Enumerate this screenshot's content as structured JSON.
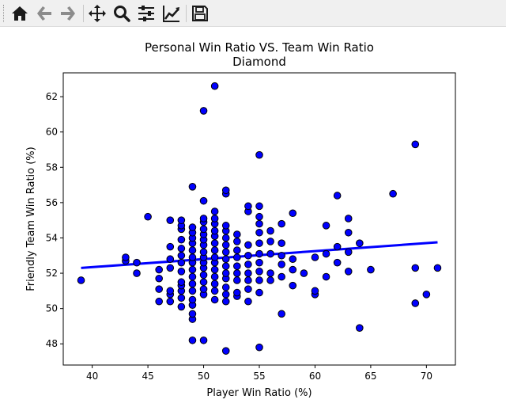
{
  "toolbar": {
    "buttons": [
      {
        "name": "home-icon",
        "tooltip": "Home"
      },
      {
        "name": "back-arrow-icon",
        "tooltip": "Back"
      },
      {
        "name": "forward-arrow-icon",
        "tooltip": "Forward"
      },
      {
        "name": "pan-move-icon",
        "tooltip": "Pan"
      },
      {
        "name": "zoom-magnifier-icon",
        "tooltip": "Zoom"
      },
      {
        "name": "configure-subplots-icon",
        "tooltip": "Subplots"
      },
      {
        "name": "edit-axis-curves-icon",
        "tooltip": "Customize"
      },
      {
        "name": "save-floppy-icon",
        "tooltip": "Save"
      }
    ]
  },
  "chart_data": {
    "type": "scatter",
    "title": "Personal Win Ratio VS. Team Win Ratio",
    "subtitle": "Diamond",
    "xlabel": "Player Win Ratio (%)",
    "ylabel": "Friendly Team Win Ratio (%)",
    "xlim": [
      37.4,
      72.6
    ],
    "ylim": [
      46.8,
      63.35
    ],
    "xticks": [
      40,
      45,
      50,
      55,
      60,
      65,
      70
    ],
    "yticks": [
      48,
      50,
      52,
      54,
      56,
      58,
      60,
      62
    ],
    "grid": false,
    "marker_color": "#0000ff",
    "marker_edge": "#000000",
    "line_color": "#0000ff",
    "trendline": {
      "x": [
        39,
        71
      ],
      "y": [
        52.3,
        53.75
      ]
    },
    "points": [
      [
        39,
        51.6
      ],
      [
        43,
        52.7
      ],
      [
        43,
        52.9
      ],
      [
        44,
        52.0
      ],
      [
        44,
        52.6
      ],
      [
        45,
        55.2
      ],
      [
        46,
        50.4
      ],
      [
        46,
        51.1
      ],
      [
        46,
        51.7
      ],
      [
        46,
        52.2
      ],
      [
        47,
        50.4
      ],
      [
        47,
        50.8
      ],
      [
        47,
        51.0
      ],
      [
        47,
        52.3
      ],
      [
        47,
        52.8
      ],
      [
        47,
        53.5
      ],
      [
        47,
        55.0
      ],
      [
        48,
        50.1
      ],
      [
        48,
        50.6
      ],
      [
        48,
        51.0
      ],
      [
        48,
        51.3
      ],
      [
        48,
        51.5
      ],
      [
        48,
        52.1
      ],
      [
        48,
        52.6
      ],
      [
        48,
        53.0
      ],
      [
        48,
        53.4
      ],
      [
        48,
        53.9
      ],
      [
        48,
        54.5
      ],
      [
        48,
        54.7
      ],
      [
        48,
        55.0
      ],
      [
        49,
        48.2
      ],
      [
        49,
        49.4
      ],
      [
        49,
        49.7
      ],
      [
        49,
        50.2
      ],
      [
        49,
        50.5
      ],
      [
        49,
        51.0
      ],
      [
        49,
        51.4
      ],
      [
        49,
        51.8
      ],
      [
        49,
        52.2
      ],
      [
        49,
        52.6
      ],
      [
        49,
        52.9
      ],
      [
        49,
        53.3
      ],
      [
        49,
        53.7
      ],
      [
        49,
        54.0
      ],
      [
        49,
        54.3
      ],
      [
        49,
        54.6
      ],
      [
        49,
        56.9
      ],
      [
        50,
        48.2
      ],
      [
        50,
        50.8
      ],
      [
        50,
        51.1
      ],
      [
        50,
        51.5
      ],
      [
        50,
        51.9
      ],
      [
        50,
        52.3
      ],
      [
        50,
        52.6
      ],
      [
        50,
        52.9
      ],
      [
        50,
        53.2
      ],
      [
        50,
        53.6
      ],
      [
        50,
        53.9
      ],
      [
        50,
        54.2
      ],
      [
        50,
        54.5
      ],
      [
        50,
        54.9
      ],
      [
        50,
        55.1
      ],
      [
        50,
        56.1
      ],
      [
        50,
        61.2
      ],
      [
        51,
        50.5
      ],
      [
        51,
        51.0
      ],
      [
        51,
        51.4
      ],
      [
        51,
        51.8
      ],
      [
        51,
        52.2
      ],
      [
        51,
        52.6
      ],
      [
        51,
        52.9
      ],
      [
        51,
        53.3
      ],
      [
        51,
        53.7
      ],
      [
        51,
        54.1
      ],
      [
        51,
        54.4
      ],
      [
        51,
        54.8
      ],
      [
        51,
        55.1
      ],
      [
        51,
        55.5
      ],
      [
        51,
        62.6
      ],
      [
        52,
        47.6
      ],
      [
        52,
        50.4
      ],
      [
        52,
        50.8
      ],
      [
        52,
        51.2
      ],
      [
        52,
        51.7
      ],
      [
        52,
        52.0
      ],
      [
        52,
        52.4
      ],
      [
        52,
        52.8
      ],
      [
        52,
        53.2
      ],
      [
        52,
        53.6
      ],
      [
        52,
        54.0
      ],
      [
        52,
        54.4
      ],
      [
        52,
        54.7
      ],
      [
        52,
        56.5
      ],
      [
        52,
        56.7
      ],
      [
        53,
        50.7
      ],
      [
        53,
        50.9
      ],
      [
        53,
        51.6
      ],
      [
        53,
        52.0
      ],
      [
        53,
        52.4
      ],
      [
        53,
        52.9
      ],
      [
        53,
        53.3
      ],
      [
        53,
        53.8
      ],
      [
        53,
        54.2
      ],
      [
        54,
        50.4
      ],
      [
        54,
        51.1
      ],
      [
        54,
        51.6
      ],
      [
        54,
        52.0
      ],
      [
        54,
        52.5
      ],
      [
        54,
        53.0
      ],
      [
        54,
        53.6
      ],
      [
        54,
        55.5
      ],
      [
        54,
        55.8
      ],
      [
        55,
        47.8
      ],
      [
        55,
        50.9
      ],
      [
        55,
        51.6
      ],
      [
        55,
        52.1
      ],
      [
        55,
        52.6
      ],
      [
        55,
        53.1
      ],
      [
        55,
        53.7
      ],
      [
        55,
        54.3
      ],
      [
        55,
        54.8
      ],
      [
        55,
        55.2
      ],
      [
        55,
        55.8
      ],
      [
        55,
        58.7
      ],
      [
        56,
        51.6
      ],
      [
        56,
        52.0
      ],
      [
        56,
        53.1
      ],
      [
        56,
        53.8
      ],
      [
        56,
        54.4
      ],
      [
        57,
        49.7
      ],
      [
        57,
        51.8
      ],
      [
        57,
        52.5
      ],
      [
        57,
        53.0
      ],
      [
        57,
        53.7
      ],
      [
        57,
        54.8
      ],
      [
        58,
        51.3
      ],
      [
        58,
        52.2
      ],
      [
        58,
        52.8
      ],
      [
        58,
        55.4
      ],
      [
        59,
        52.0
      ],
      [
        60,
        50.8
      ],
      [
        60,
        51.0
      ],
      [
        60,
        52.9
      ],
      [
        61,
        51.8
      ],
      [
        61,
        53.1
      ],
      [
        61,
        54.7
      ],
      [
        62,
        52.6
      ],
      [
        62,
        53.5
      ],
      [
        62,
        56.4
      ],
      [
        63,
        52.1
      ],
      [
        63,
        53.2
      ],
      [
        63,
        54.3
      ],
      [
        63,
        55.1
      ],
      [
        64,
        48.9
      ],
      [
        64,
        53.7
      ],
      [
        65,
        52.2
      ],
      [
        67,
        56.5
      ],
      [
        69,
        50.3
      ],
      [
        69,
        52.3
      ],
      [
        69,
        59.3
      ],
      [
        70,
        50.8
      ],
      [
        71,
        52.3
      ]
    ]
  }
}
